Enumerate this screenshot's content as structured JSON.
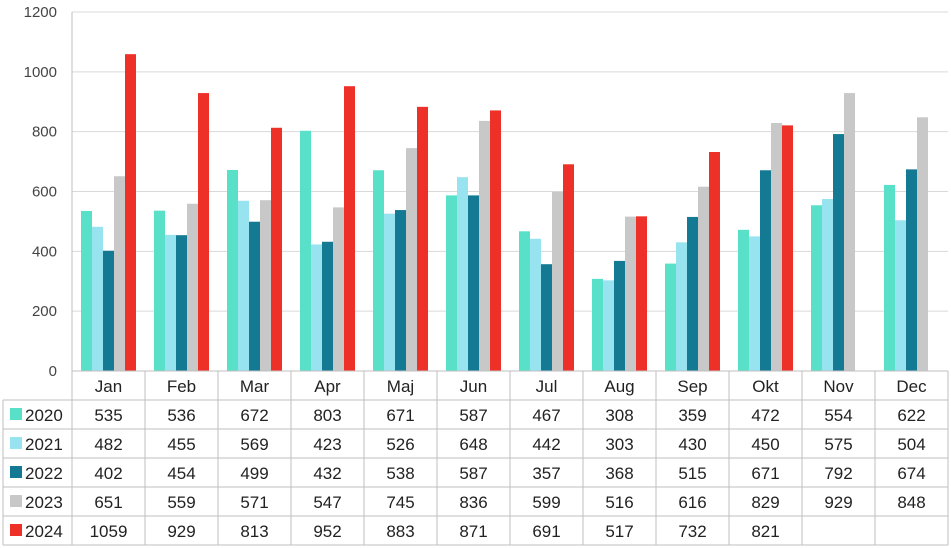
{
  "chart_data": {
    "type": "bar",
    "categories": [
      "Jan",
      "Feb",
      "Mar",
      "Apr",
      "Maj",
      "Jun",
      "Jul",
      "Aug",
      "Sep",
      "Okt",
      "Nov",
      "Dec"
    ],
    "series": [
      {
        "name": "2020",
        "color": "#58e1c8",
        "values": [
          535,
          536,
          672,
          803,
          671,
          587,
          467,
          308,
          359,
          472,
          554,
          622
        ]
      },
      {
        "name": "2021",
        "color": "#98e3f0",
        "values": [
          482,
          455,
          569,
          423,
          526,
          648,
          442,
          303,
          430,
          450,
          575,
          504
        ]
      },
      {
        "name": "2022",
        "color": "#147a94",
        "values": [
          402,
          454,
          499,
          432,
          538,
          587,
          357,
          368,
          515,
          671,
          792,
          674
        ]
      },
      {
        "name": "2023",
        "color": "#c8c8c8",
        "values": [
          651,
          559,
          571,
          547,
          745,
          836,
          599,
          516,
          616,
          829,
          929,
          848
        ]
      },
      {
        "name": "2024",
        "color": "#ee3128",
        "values": [
          1059,
          929,
          813,
          952,
          883,
          871,
          691,
          517,
          732,
          821,
          null,
          null
        ]
      }
    ],
    "title": "",
    "xlabel": "",
    "ylabel": "",
    "ylim": [
      0,
      1200
    ],
    "yticks": [
      0,
      200,
      400,
      600,
      800,
      1000,
      1200
    ],
    "grid": "horizontal",
    "legend": "data-table"
  }
}
